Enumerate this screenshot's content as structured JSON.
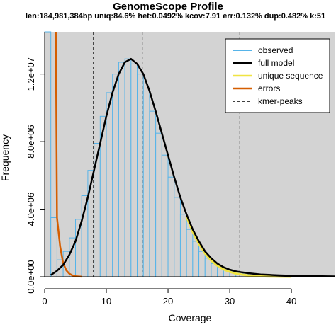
{
  "chart_data": {
    "type": "line",
    "title": "GenomeScope Profile",
    "subtitle": "len:184,981,384bp uniq:84.6%  het:0.0492% kcov:7.91 err:0.132%  dup:0.482% k:51",
    "xlabel": "Coverage",
    "ylabel": "Frequency",
    "xlim": [
      0,
      47
    ],
    "ylim": [
      0,
      14500000
    ],
    "x_ticks": [
      0,
      10,
      20,
      30,
      40
    ],
    "y_ticks": [
      0,
      4000000,
      8000000,
      12000000
    ],
    "y_tick_labels": [
      "0.0e+00",
      "4.0e+06",
      "8.0e+06",
      "1.2e+07"
    ],
    "grid": false,
    "legend_position": "top-right",
    "colors": {
      "panel": "#d3d3d3",
      "observed": "#56b4e9",
      "full_model": "#000000",
      "unique_sequence": "#f0e442",
      "errors": "#d55e00",
      "kmer_peaks": "#000000"
    },
    "series": [
      {
        "name": "observed",
        "style": "histogram",
        "x": [
          1,
          2,
          3,
          4,
          5,
          6,
          7,
          8,
          9,
          10,
          11,
          12,
          13,
          14,
          15,
          16,
          17,
          18,
          19,
          20,
          21,
          22,
          23,
          24,
          25,
          26,
          27,
          28,
          29,
          30,
          31,
          32,
          33,
          34,
          35,
          36,
          37,
          38,
          39,
          40,
          41,
          42,
          43,
          44,
          45,
          46,
          47
        ],
        "values": [
          14500000,
          3500000,
          1000000,
          1500000,
          2300000,
          3400000,
          4800000,
          6300000,
          7900000,
          9500000,
          10900000,
          12000000,
          12700000,
          12900000,
          12600000,
          12000000,
          11000000,
          9800000,
          8500000,
          7200000,
          5900000,
          4700000,
          3700000,
          2800000,
          2100000,
          1500000,
          1100000,
          780000,
          560000,
          420000,
          320000,
          260000,
          210000,
          170000,
          140000,
          120000,
          100000,
          85000,
          70000,
          60000,
          52000,
          45000,
          38000,
          33000,
          28000,
          24000,
          20000
        ]
      },
      {
        "name": "full model",
        "x": [
          1,
          2,
          3,
          4,
          5,
          6,
          7,
          8,
          9,
          10,
          11,
          12,
          13,
          14,
          15,
          16,
          17,
          18,
          19,
          20,
          21,
          22,
          23,
          24,
          25,
          26,
          27,
          28,
          29,
          30,
          31,
          32,
          33,
          34,
          35,
          36,
          37,
          38,
          39,
          40,
          41,
          42,
          43,
          44,
          45,
          46,
          47
        ],
        "values": [
          100000,
          350000,
          700000,
          1300000,
          2100000,
          3300000,
          4700000,
          6300000,
          7900000,
          9500000,
          10900000,
          12000000,
          12700000,
          12900000,
          12600000,
          12000000,
          11000000,
          9800000,
          8500000,
          7200000,
          5900000,
          4700000,
          3700000,
          2800000,
          2100000,
          1500000,
          1100000,
          780000,
          560000,
          420000,
          320000,
          260000,
          210000,
          170000,
          140000,
          120000,
          100000,
          85000,
          70000,
          60000,
          52000,
          45000,
          38000,
          33000,
          28000,
          24000,
          20000
        ]
      },
      {
        "name": "unique sequence",
        "x": [
          23,
          24,
          25,
          26,
          27,
          28,
          29,
          30,
          31,
          32,
          33,
          34,
          35,
          36,
          37,
          38,
          39,
          40
        ],
        "values": [
          3550000,
          2650000,
          1950000,
          1370000,
          950000,
          650000,
          430000,
          290000,
          190000,
          125000,
          80000,
          50000,
          30000,
          18000,
          10000,
          6000,
          3500,
          2000
        ]
      },
      {
        "name": "errors",
        "x": [
          1.8,
          2.0,
          2.5,
          3.0,
          3.5,
          4.0,
          4.5,
          5.0,
          5.5,
          6.0
        ],
        "values": [
          14500000,
          3500000,
          1800000,
          800000,
          380000,
          180000,
          80000,
          35000,
          15000,
          5000
        ]
      },
      {
        "name": "kmer-peaks",
        "style": "vlines",
        "x": [
          7.91,
          15.82,
          23.73,
          31.64
        ]
      }
    ]
  }
}
